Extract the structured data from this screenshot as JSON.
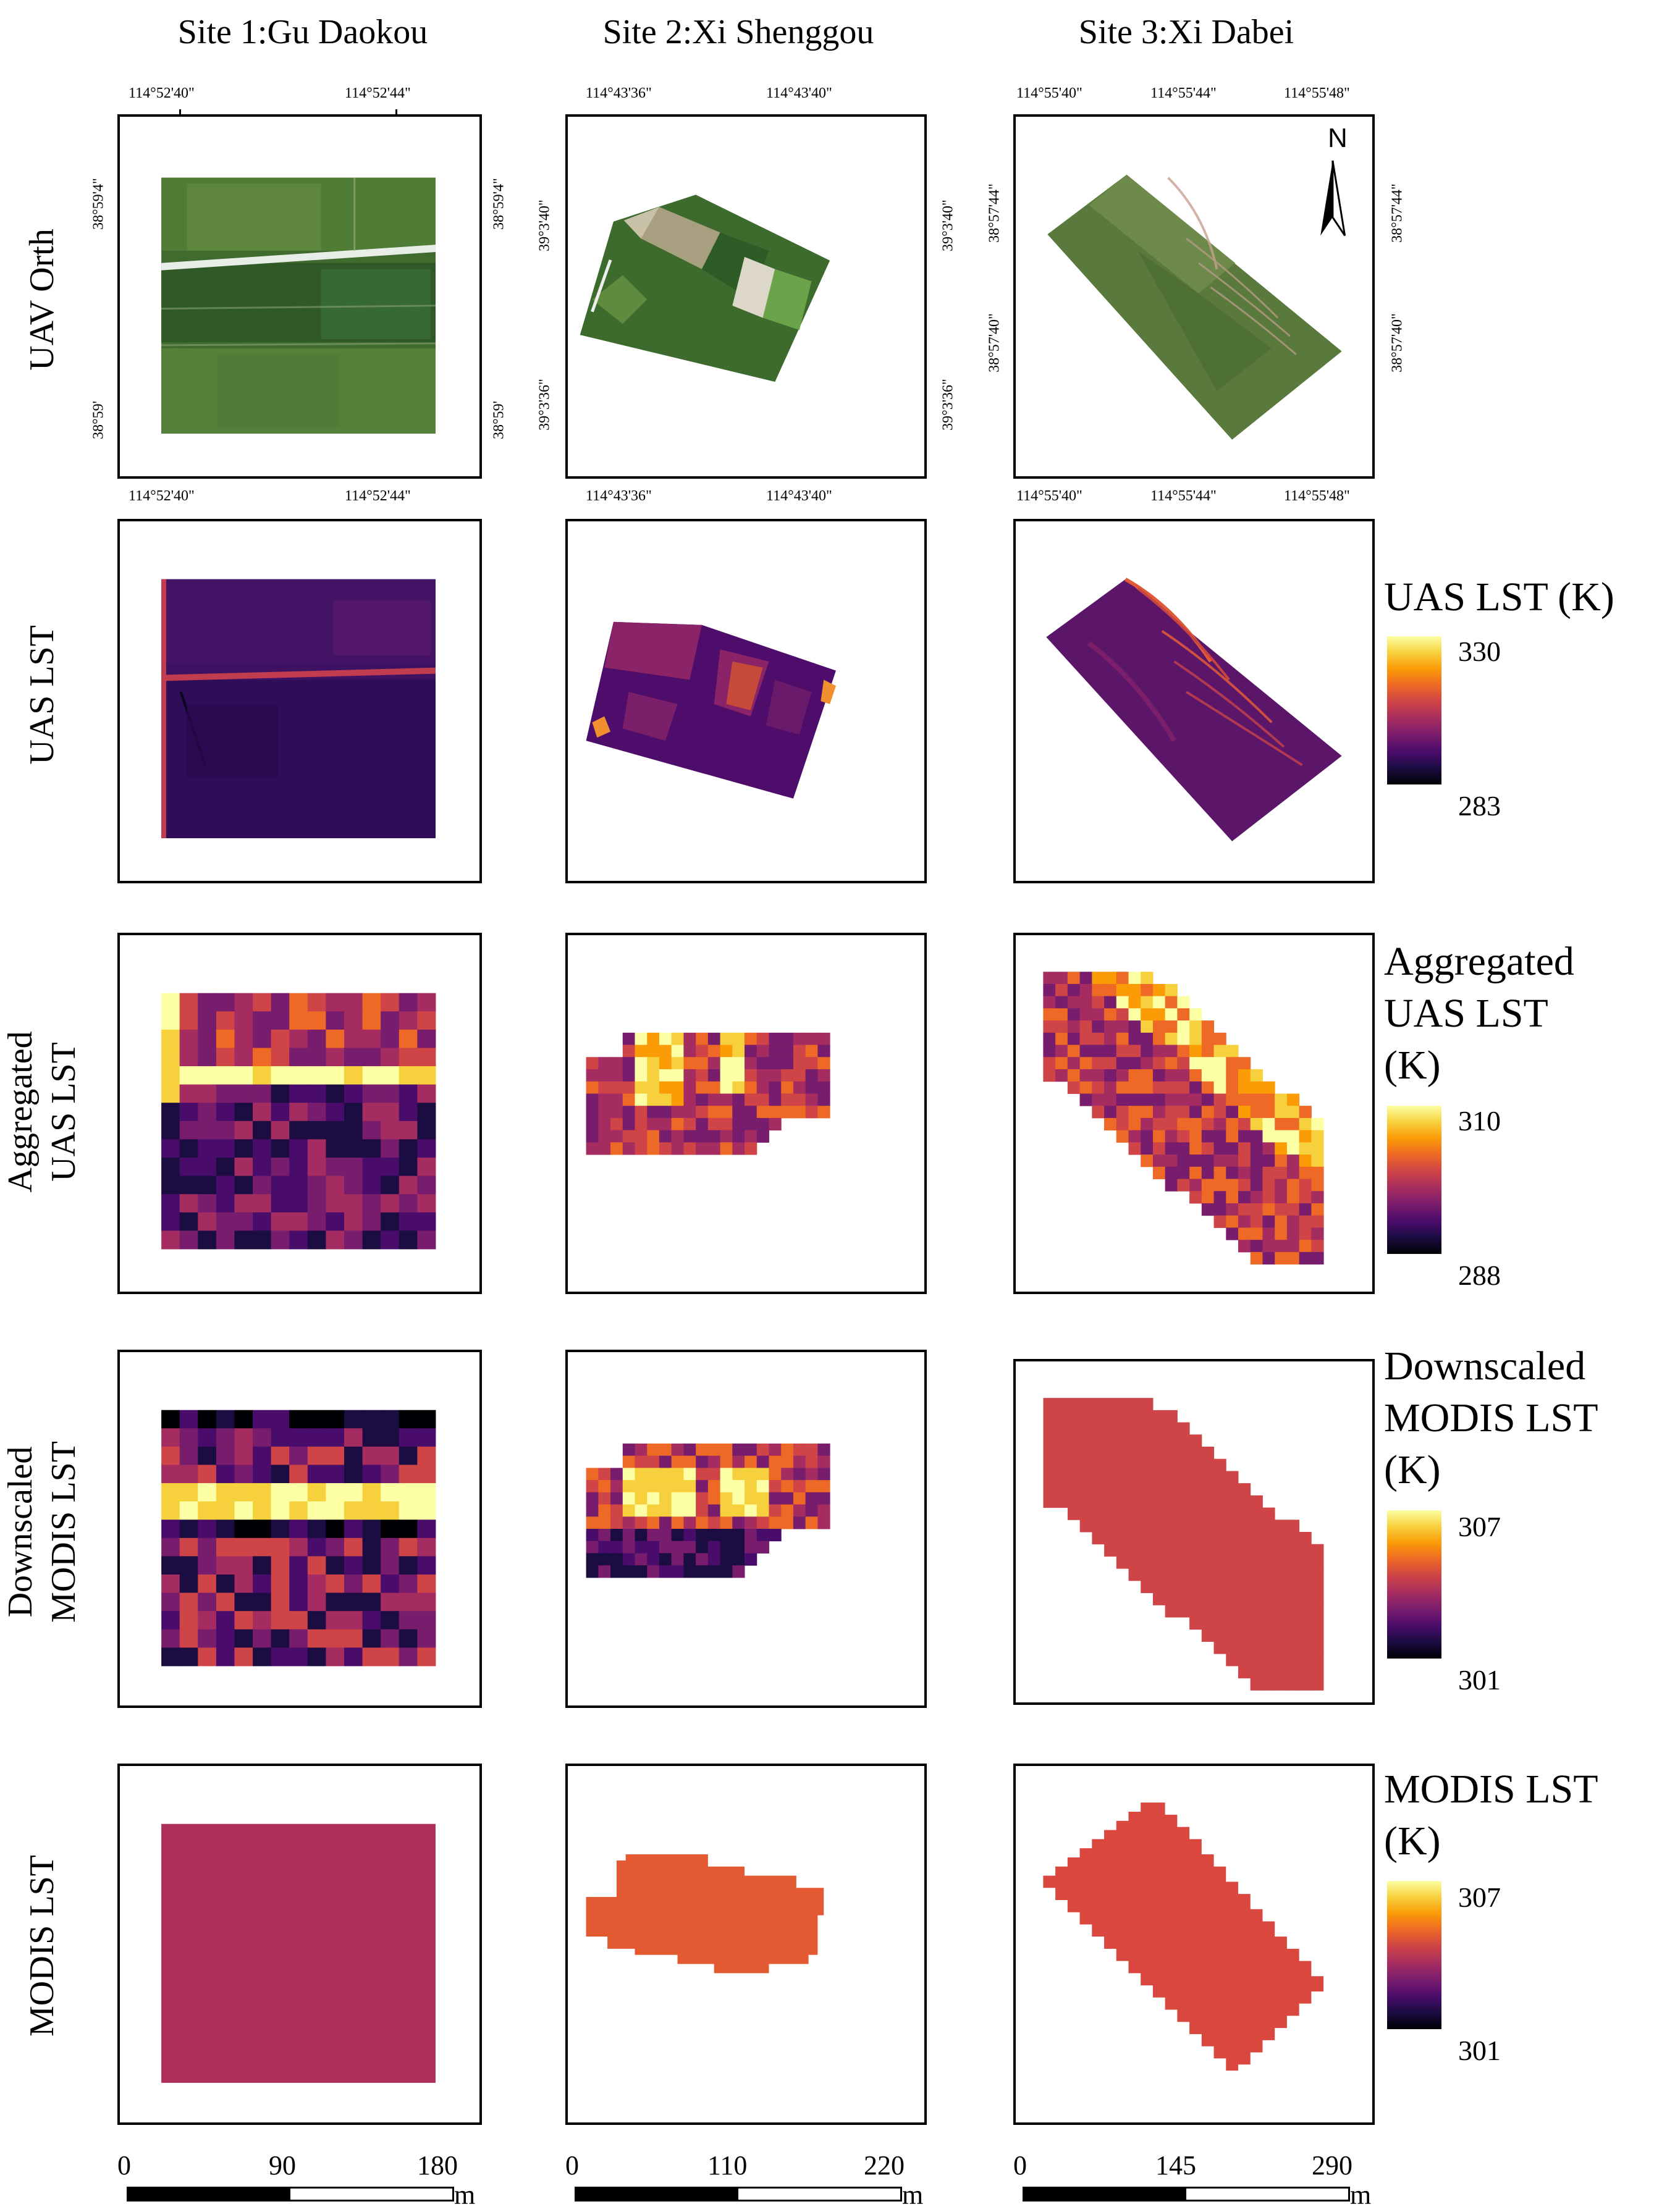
{
  "site_titles": [
    "Site 1:Gu Daokou",
    "Site 2:Xi Shenggou",
    "Site 3:Xi Dabei"
  ],
  "row_labels": [
    "UAV  Orth",
    "UAS LST",
    "Aggregated\nUAS LST",
    "Downscaled\nMODIS LST",
    "MODIS LST"
  ],
  "north_arrow": "N",
  "coords": {
    "site1": {
      "lon": [
        "114°52'40\"",
        "114°52'44\""
      ],
      "lat": [
        "38°59'4\"",
        "38°59'"
      ]
    },
    "site2": {
      "lon": [
        "114°43'36\"",
        "114°43'40\""
      ],
      "lat": [
        "39°3'40\"",
        "39°3'36\""
      ]
    },
    "site3": {
      "lon": [
        "114°55'40\"",
        "114°55'44\"",
        "114°55'48\""
      ],
      "lat": [
        "38°57'44\"",
        "38°57'40\""
      ]
    }
  },
  "legends": [
    {
      "title": "UAS LST (K)",
      "max": "330",
      "min": "283"
    },
    {
      "title": "Aggregated\nUAS LST\n(K)",
      "max": "310",
      "min": "288"
    },
    {
      "title": "Downscaled\nMODIS LST\n(K)",
      "max": "307",
      "min": "301"
    },
    {
      "title": "MODIS LST\n(K)",
      "max": "307",
      "min": "301"
    }
  ],
  "scalebars": [
    {
      "labels": [
        "0",
        "90",
        "180"
      ],
      "unit": "m"
    },
    {
      "labels": [
        "0",
        "110",
        "220"
      ],
      "unit": "m"
    },
    {
      "labels": [
        "0",
        "145",
        "290"
      ],
      "unit": "m"
    }
  ],
  "colors": {
    "inferno": [
      "#000004",
      "#1b0c41",
      "#4a0c6b",
      "#781c6d",
      "#a52c60",
      "#cf4446",
      "#ed6925",
      "#fb9b06",
      "#f7d13d",
      "#fcffa4"
    ],
    "modis_site1": "#ad2f5a",
    "modis_site2": "#e35a32",
    "modis_site3": "#d9473f",
    "down_site3": "#cf4446"
  }
}
